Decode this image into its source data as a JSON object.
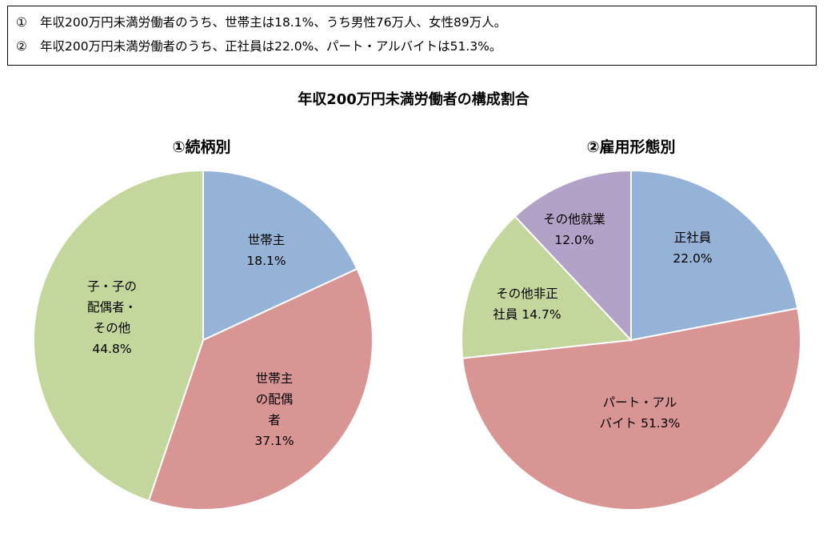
{
  "notes": [
    {
      "marker": "①",
      "text": "年収200万円未満労働者のうち、世帯主は18.1%、うち男性76万人、女性89万人。"
    },
    {
      "marker": "②",
      "text": "年収200万円未満労働者のうち、正社員は22.0%、パート・アルバイトは51.3%。"
    }
  ],
  "main_title": "年収200万円未満労働者の構成割合",
  "colors": {
    "blue": "#95b3d7",
    "red": "#d99594",
    "green": "#c3d69b",
    "purple": "#b3a2c7",
    "edge": "#ffffff"
  },
  "chart_data": [
    {
      "type": "pie",
      "title": "①続柄別",
      "slices": [
        {
          "label_lines": [
            "世帯主",
            "18.1%"
          ],
          "value": 18.1,
          "color": "#95b3d7"
        },
        {
          "label_lines": [
            "世帯主",
            "の配偶",
            "者",
            "37.1%"
          ],
          "value": 37.1,
          "color": "#d99594"
        },
        {
          "label_lines": [
            "子・子の",
            "配偶者・",
            "その他",
            "44.8%"
          ],
          "value": 44.8,
          "color": "#c3d69b"
        }
      ]
    },
    {
      "type": "pie",
      "title": "②雇用形態別",
      "slices": [
        {
          "label_lines": [
            "正社員",
            "22.0%"
          ],
          "value": 22.0,
          "color": "#95b3d7"
        },
        {
          "label_lines": [
            "パート・アル",
            "バイト 51.3%"
          ],
          "value": 51.3,
          "color": "#d99594"
        },
        {
          "label_lines": [
            "その他非正",
            "社員 14.7%"
          ],
          "value": 14.7,
          "color": "#c3d69b"
        },
        {
          "label_lines": [
            "その他就業",
            "12.0%"
          ],
          "value": 12.0,
          "color": "#b3a2c7"
        }
      ]
    }
  ]
}
